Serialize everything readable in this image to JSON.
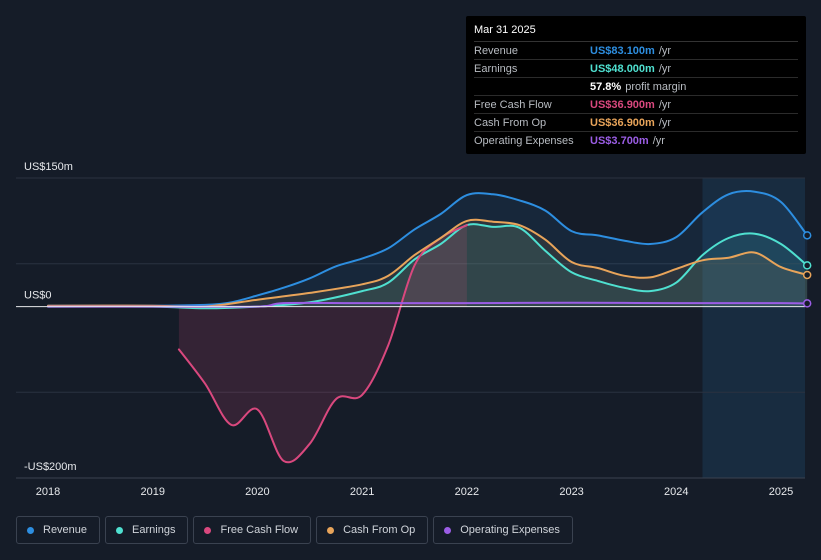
{
  "chart_data": {
    "type": "line",
    "title": "",
    "y_top_label": "US$150m",
    "y_zero_label": "US$0",
    "y_bottom_label": "-US$200m",
    "ylim": [
      -200,
      150
    ],
    "xlim": [
      2017.7,
      2025.25
    ],
    "x_ticks": [
      {
        "value": 2018,
        "label": "2018"
      },
      {
        "value": 2019,
        "label": "2019"
      },
      {
        "value": 2020,
        "label": "2020"
      },
      {
        "value": 2021,
        "label": "2021"
      },
      {
        "value": 2022,
        "label": "2022"
      },
      {
        "value": 2023,
        "label": "2023"
      },
      {
        "value": 2024,
        "label": "2024"
      },
      {
        "value": 2025,
        "label": "2025"
      }
    ],
    "forecast_start": 2024.25,
    "series": [
      {
        "name": "Revenue",
        "color": "#2d8ee0",
        "fill": true,
        "x": [
          2018.0,
          2019.0,
          2019.5,
          2019.75,
          2020.0,
          2020.25,
          2020.5,
          2020.75,
          2021.0,
          2021.25,
          2021.5,
          2021.75,
          2022.0,
          2022.25,
          2022.5,
          2022.75,
          2023.0,
          2023.25,
          2023.5,
          2023.75,
          2024.0,
          2024.25,
          2024.5,
          2024.75,
          2025.0,
          2025.25
        ],
        "values": [
          1.0,
          1.0,
          2.0,
          5.0,
          13.0,
          22.0,
          33.0,
          47.0,
          56.0,
          68.0,
          90.0,
          108.0,
          130.0,
          131.0,
          124.0,
          112.0,
          88.0,
          83.0,
          77.0,
          73.0,
          81.0,
          110.0,
          131.0,
          134.0,
          122.0,
          83.1
        ]
      },
      {
        "name": "Earnings",
        "color": "#4fe0d0",
        "fill": true,
        "x": [
          2018.0,
          2019.0,
          2019.5,
          2020.0,
          2020.5,
          2021.0,
          2021.25,
          2021.5,
          2021.75,
          2022.0,
          2022.25,
          2022.5,
          2022.75,
          2023.0,
          2023.25,
          2023.5,
          2023.75,
          2024.0,
          2024.25,
          2024.5,
          2024.75,
          2025.0,
          2025.25
        ],
        "values": [
          0.0,
          0.0,
          -2.0,
          0.0,
          5.0,
          18.0,
          28.0,
          55.0,
          73.0,
          95.0,
          93.0,
          92.0,
          65.0,
          40.0,
          30.0,
          22.0,
          18.0,
          28.0,
          60.0,
          80.0,
          85.0,
          73.0,
          48.0
        ]
      },
      {
        "name": "Free Cash Flow",
        "color": "#d9487e",
        "fill": true,
        "x": [
          2019.25,
          2019.5,
          2019.75,
          2020.0,
          2020.25,
          2020.5,
          2020.75,
          2021.0,
          2021.25,
          2021.5,
          2021.75,
          2022.0
        ],
        "values": [
          -50.0,
          -90.0,
          -138.0,
          -120.0,
          -180.0,
          -160.0,
          -108.0,
          -103.0,
          -45.0,
          48.0,
          80.0,
          95.0
        ]
      },
      {
        "name": "Cash From Op",
        "color": "#e8a45a",
        "fill": true,
        "x": [
          2018.0,
          2019.0,
          2019.5,
          2020.0,
          2020.5,
          2021.0,
          2021.25,
          2021.5,
          2021.75,
          2022.0,
          2022.25,
          2022.5,
          2022.75,
          2023.0,
          2023.25,
          2023.5,
          2023.75,
          2024.0,
          2024.25,
          2024.5,
          2024.75,
          2025.0,
          2025.25
        ],
        "values": [
          1.0,
          1.0,
          0.0,
          8.0,
          16.0,
          26.0,
          36.0,
          60.0,
          80.0,
          100.0,
          99.0,
          95.0,
          78.0,
          52.0,
          45.0,
          36.0,
          34.0,
          44.0,
          54.0,
          57.0,
          63.0,
          46.0,
          36.9
        ]
      },
      {
        "name": "Operating Expenses",
        "color": "#9b5de5",
        "fill": false,
        "x": [
          2018.0,
          2019.0,
          2020.0,
          2020.25,
          2021.0,
          2022.0,
          2023.0,
          2024.0,
          2025.0,
          2025.25
        ],
        "values": [
          0.0,
          0.0,
          0.0,
          4.0,
          4.0,
          4.0,
          4.5,
          4.0,
          4.0,
          3.7
        ]
      }
    ]
  },
  "tooltip": {
    "date": "Mar 31 2025",
    "rows": [
      {
        "label": "Revenue",
        "value": "US$83.100m",
        "unit": "/yr",
        "color": "#2d8ee0"
      },
      {
        "label": "Earnings",
        "value": "US$48.000m",
        "unit": "/yr",
        "color": "#4fe0d0"
      },
      {
        "label": "",
        "value": "57.8%",
        "unit": "profit margin",
        "color": "#ffffff"
      },
      {
        "label": "Free Cash Flow",
        "value": "US$36.900m",
        "unit": "/yr",
        "color": "#d9487e"
      },
      {
        "label": "Cash From Op",
        "value": "US$36.900m",
        "unit": "/yr",
        "color": "#e8a45a"
      },
      {
        "label": "Operating Expenses",
        "value": "US$3.700m",
        "unit": "/yr",
        "color": "#9b5de5"
      }
    ]
  },
  "legend": [
    {
      "label": "Revenue",
      "color": "#2d8ee0"
    },
    {
      "label": "Earnings",
      "color": "#4fe0d0"
    },
    {
      "label": "Free Cash Flow",
      "color": "#d9487e"
    },
    {
      "label": "Cash From Op",
      "color": "#e8a45a"
    },
    {
      "label": "Operating Expenses",
      "color": "#9b5de5"
    }
  ]
}
